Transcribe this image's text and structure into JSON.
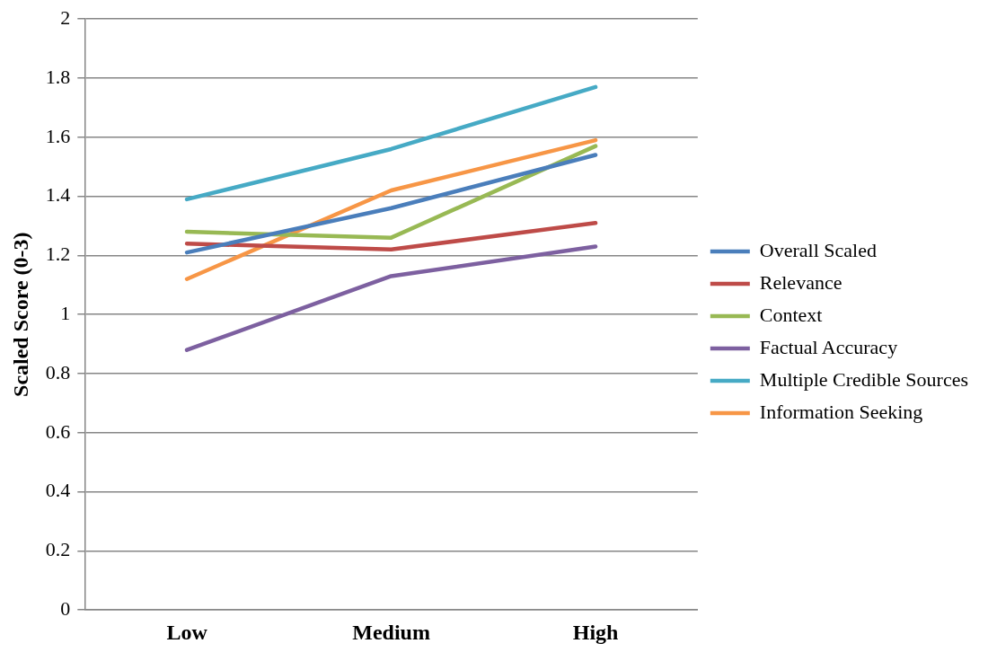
{
  "chart_data": {
    "type": "line",
    "ylabel": "Scaled Score (0-3)",
    "categories": [
      "Low",
      "Medium",
      "High"
    ],
    "series": [
      {
        "name": "Overall Scaled",
        "color": "#4a7ebb",
        "values": [
          1.21,
          1.36,
          1.54
        ]
      },
      {
        "name": "Relevance",
        "color": "#be4b48",
        "values": [
          1.24,
          1.22,
          1.31
        ]
      },
      {
        "name": "Context",
        "color": "#98b954",
        "values": [
          1.28,
          1.26,
          1.57
        ]
      },
      {
        "name": "Factual Accuracy",
        "color": "#7d60a0",
        "values": [
          0.88,
          1.13,
          1.23
        ]
      },
      {
        "name": "Multiple Credible Sources",
        "color": "#46aac5",
        "values": [
          1.39,
          1.56,
          1.77
        ]
      },
      {
        "name": "Information Seeking",
        "color": "#f79646",
        "values": [
          1.12,
          1.42,
          1.59
        ]
      }
    ],
    "ylim": [
      0,
      2
    ],
    "yticks": [
      0,
      0.2,
      0.4,
      0.6,
      0.8,
      1,
      1.2,
      1.4,
      1.6,
      1.8,
      2
    ],
    "grid": "y",
    "legend": "right",
    "marker": "none",
    "line_style": "solid"
  }
}
